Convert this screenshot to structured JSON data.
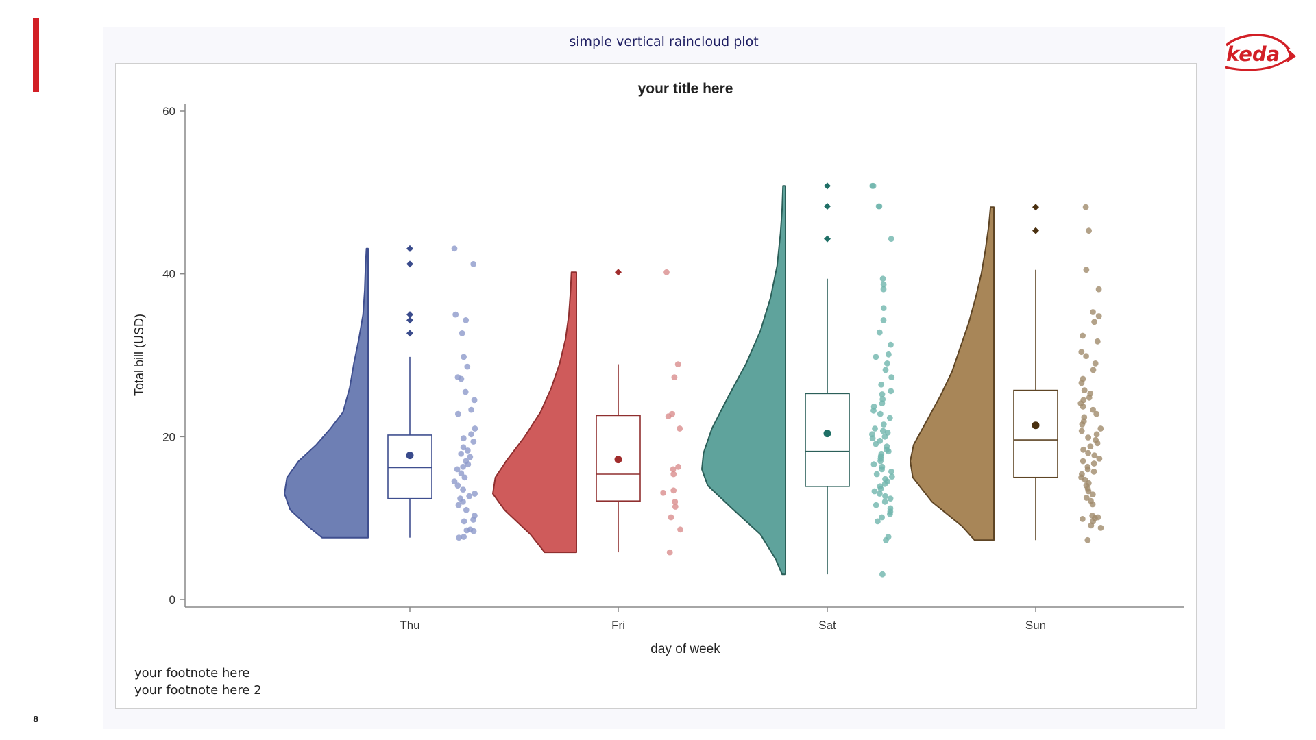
{
  "page": {
    "number": "8",
    "sup_title": "simple vertical raincloud plot",
    "logo_text": "keda",
    "footnotes": [
      "your footnote here",
      "your footnote here 2"
    ]
  },
  "colors": {
    "accent": "#d21f26",
    "sup_title": "#1e1e62"
  },
  "chart_data": {
    "type": "raincloud",
    "title": "your title here",
    "xlabel": "day of week",
    "ylabel": "Total bill (USD)",
    "ylim": [
      0,
      60
    ],
    "yticks": [
      0,
      20,
      40,
      60
    ],
    "categories": [
      "Thu",
      "Fri",
      "Sat",
      "Sun"
    ],
    "grid": false,
    "legend": "none",
    "series": [
      {
        "category": "Thu",
        "colors": {
          "cloud": "#6e7fb4",
          "stroke": "#3f4f8f",
          "rain": "#8d9acb",
          "marker": "#3a4b8c"
        },
        "box": {
          "q1": 12.4,
          "median": 16.2,
          "q3": 20.2,
          "whisker_low": 7.6,
          "whisker_high": 29.8,
          "mean": 17.7
        },
        "outliers": [
          43.1,
          41.2,
          35.0,
          34.3,
          32.7
        ],
        "density": [
          [
            7.6,
            0.0
          ],
          [
            7.6,
            0.55
          ],
          [
            9,
            0.72
          ],
          [
            11,
            0.93
          ],
          [
            13,
            1.0
          ],
          [
            15,
            0.97
          ],
          [
            17,
            0.83
          ],
          [
            19,
            0.62
          ],
          [
            21,
            0.45
          ],
          [
            23,
            0.3
          ],
          [
            26,
            0.22
          ],
          [
            29,
            0.17
          ],
          [
            32,
            0.11
          ],
          [
            35,
            0.06
          ],
          [
            38,
            0.04
          ],
          [
            41,
            0.03
          ],
          [
            43.1,
            0.02
          ],
          [
            43.1,
            0.0
          ]
        ],
        "points": [
          43.1,
          41.2,
          35.0,
          34.3,
          32.7,
          29.8,
          28.6,
          27.3,
          27.1,
          25.5,
          24.5,
          23.3,
          22.8,
          21.0,
          20.3,
          19.8,
          19.4,
          18.7,
          18.3,
          17.9,
          17.5,
          17.0,
          16.6,
          16.3,
          16.0,
          15.5,
          15.0,
          14.5,
          14.0,
          13.5,
          13.0,
          12.7,
          12.4,
          12.0,
          11.6,
          11.0,
          10.3,
          9.8,
          9.6,
          8.6,
          8.5,
          8.4,
          7.7,
          7.6
        ]
      },
      {
        "category": "Fri",
        "colors": {
          "cloud": "#cf5b5b",
          "stroke": "#8f2f2f",
          "rain": "#d98d8d",
          "marker": "#a02c2c"
        },
        "box": {
          "q1": 12.1,
          "median": 15.4,
          "q3": 22.6,
          "whisker_low": 5.8,
          "whisker_high": 28.9,
          "mean": 17.2
        },
        "outliers": [
          40.2
        ],
        "density": [
          [
            5.8,
            0.0
          ],
          [
            5.8,
            0.38
          ],
          [
            8,
            0.55
          ],
          [
            11,
            0.86
          ],
          [
            13,
            1.0
          ],
          [
            15,
            0.97
          ],
          [
            17,
            0.84
          ],
          [
            20,
            0.62
          ],
          [
            23,
            0.43
          ],
          [
            26,
            0.3
          ],
          [
            29,
            0.2
          ],
          [
            32,
            0.13
          ],
          [
            35,
            0.09
          ],
          [
            38,
            0.07
          ],
          [
            40.2,
            0.06
          ],
          [
            40.2,
            0.0
          ]
        ],
        "points": [
          40.2,
          28.9,
          27.3,
          22.8,
          22.5,
          21.0,
          16.3,
          16.0,
          15.4,
          13.4,
          13.1,
          12.0,
          11.4,
          10.1,
          8.6,
          5.8
        ]
      },
      {
        "category": "Sat",
        "colors": {
          "cloud": "#5fa39c",
          "stroke": "#2b5f59",
          "rain": "#6fb5ac",
          "marker": "#1f6f66"
        },
        "box": {
          "q1": 13.9,
          "median": 18.2,
          "q3": 25.3,
          "whisker_low": 3.1,
          "whisker_high": 39.4,
          "mean": 20.4
        },
        "outliers": [
          50.8,
          48.3,
          44.3
        ],
        "density": [
          [
            3.1,
            0.0
          ],
          [
            3.1,
            0.04
          ],
          [
            5,
            0.12
          ],
          [
            8,
            0.3
          ],
          [
            11,
            0.62
          ],
          [
            14,
            0.93
          ],
          [
            16,
            1.0
          ],
          [
            18,
            0.98
          ],
          [
            21,
            0.88
          ],
          [
            25,
            0.68
          ],
          [
            29,
            0.47
          ],
          [
            33,
            0.3
          ],
          [
            37,
            0.18
          ],
          [
            41,
            0.1
          ],
          [
            45,
            0.06
          ],
          [
            48,
            0.04
          ],
          [
            50.8,
            0.03
          ],
          [
            50.8,
            0.0
          ]
        ],
        "points": [
          50.8,
          50.8,
          48.3,
          48.3,
          44.3,
          39.4,
          38.7,
          38.1,
          35.8,
          34.3,
          32.8,
          31.3,
          30.1,
          29.8,
          29.0,
          28.2,
          27.3,
          26.4,
          25.6,
          25.2,
          24.6,
          24.1,
          23.7,
          23.2,
          22.8,
          22.3,
          21.5,
          21.0,
          20.7,
          20.5,
          20.3,
          20.0,
          19.8,
          19.5,
          19.1,
          18.8,
          18.4,
          18.2,
          17.9,
          17.6,
          17.3,
          17.0,
          16.6,
          16.3,
          16.0,
          15.7,
          15.4,
          15.1,
          14.8,
          14.5,
          14.2,
          13.9,
          13.6,
          13.3,
          13.0,
          12.7,
          12.4,
          12.0,
          11.6,
          11.2,
          10.8,
          10.5,
          10.1,
          9.6,
          7.7,
          7.3,
          3.1
        ]
      },
      {
        "category": "Sun",
        "colors": {
          "cloud": "#a88658",
          "stroke": "#5e4525",
          "rain": "#a08b6c",
          "marker": "#4a3010"
        },
        "box": {
          "q1": 15.0,
          "median": 19.6,
          "q3": 25.7,
          "whisker_low": 7.3,
          "whisker_high": 40.5,
          "mean": 21.4
        },
        "outliers": [
          48.2,
          45.3
        ],
        "density": [
          [
            7.3,
            0.0
          ],
          [
            7.3,
            0.23
          ],
          [
            9,
            0.38
          ],
          [
            12,
            0.74
          ],
          [
            15,
            0.97
          ],
          [
            17,
            1.0
          ],
          [
            19,
            0.96
          ],
          [
            22,
            0.8
          ],
          [
            25,
            0.64
          ],
          [
            28,
            0.5
          ],
          [
            31,
            0.4
          ],
          [
            34,
            0.3
          ],
          [
            37,
            0.22
          ],
          [
            40,
            0.15
          ],
          [
            43,
            0.1
          ],
          [
            46,
            0.06
          ],
          [
            48.2,
            0.04
          ],
          [
            48.2,
            0.0
          ]
        ],
        "points": [
          48.2,
          45.3,
          40.5,
          38.1,
          35.3,
          34.8,
          34.1,
          32.4,
          31.7,
          30.4,
          29.9,
          29.0,
          28.2,
          27.1,
          26.6,
          25.7,
          25.3,
          24.8,
          24.5,
          24.1,
          23.7,
          23.3,
          22.8,
          22.4,
          21.9,
          21.5,
          21.0,
          20.7,
          20.3,
          19.9,
          19.6,
          19.2,
          18.8,
          18.4,
          18.0,
          17.7,
          17.3,
          17.0,
          16.7,
          16.3,
          16.0,
          15.7,
          15.4,
          15.0,
          14.7,
          14.3,
          14.0,
          13.6,
          13.3,
          12.9,
          12.5,
          12.1,
          11.7,
          10.3,
          10.1,
          10.0,
          9.9,
          9.6,
          9.1,
          8.8,
          7.3
        ]
      }
    ]
  }
}
